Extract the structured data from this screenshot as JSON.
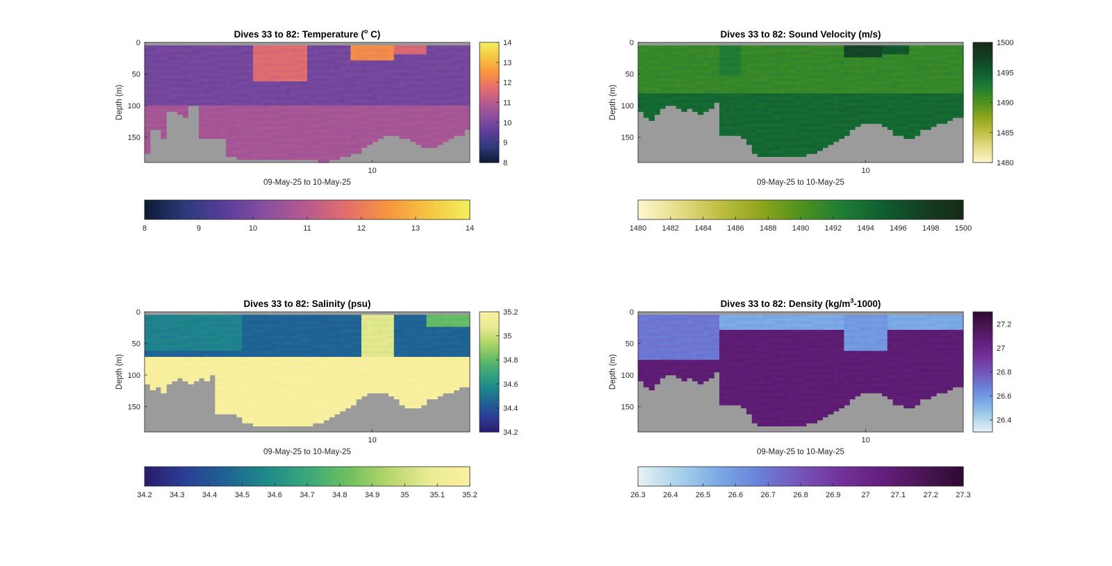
{
  "chart_data": [
    {
      "type": "heatmap",
      "title_main": "Dives 33 to 82: Temperature (",
      "title_sup": "o",
      "title_tail": " C)",
      "xlabel": "09-May-25 to 10-May-25",
      "ylabel": "Depth (m)",
      "x_ticks": [
        "10"
      ],
      "y_ticks": [
        "0",
        "50",
        "100",
        "150"
      ],
      "y_range": [
        0,
        190
      ],
      "colorbar_range": [
        8,
        14
      ],
      "colorbar_ticks": [
        "8",
        "9",
        "10",
        "11",
        "12",
        "13",
        "14"
      ],
      "horizontal_colorbar_ticks": [
        "8",
        "9",
        "10",
        "11",
        "12",
        "13",
        "14"
      ],
      "colormap": [
        "#0d1a33",
        "#2c3a7a",
        "#5b3d9a",
        "#8a4f9f",
        "#b85a8e",
        "#e56f6a",
        "#f6963f",
        "#f5c542",
        "#f2f060"
      ],
      "bottom_depth": [
        175,
        140,
        140,
        150,
        110,
        110,
        115,
        120,
        100,
        100,
        150,
        150,
        150,
        150,
        150,
        180,
        180,
        185,
        185,
        185,
        185,
        185,
        185,
        185,
        185,
        185,
        185,
        185,
        185,
        185,
        185,
        185,
        190,
        190,
        185,
        185,
        180,
        180,
        175,
        175,
        165,
        160,
        155,
        150,
        148,
        145,
        145,
        150,
        150,
        155,
        160,
        165,
        168,
        165,
        160,
        155,
        150,
        148,
        145,
        140
      ],
      "base_value": 10.7,
      "mixed_value": 9.9,
      "mixed_depth": 100,
      "warm_patches": [
        {
          "from": 20,
          "to": 30,
          "value": 11.6,
          "depth": 60
        },
        {
          "from": 38,
          "to": 46,
          "value": 12.3,
          "depth": 30
        },
        {
          "from": 46,
          "to": 52,
          "value": 11.5,
          "depth": 18
        }
      ]
    },
    {
      "type": "heatmap",
      "title_main": "Dives 33 to 82: Sound Velocity (m/s)",
      "title_sup": "",
      "title_tail": "",
      "xlabel": "09-May-25 to 10-May-25",
      "ylabel": "Depth (m)",
      "x_ticks": [
        "10"
      ],
      "y_ticks": [
        "0",
        "50",
        "100",
        "150"
      ],
      "y_range": [
        0,
        190
      ],
      "colorbar_range": [
        1480,
        1500
      ],
      "colorbar_ticks": [
        "1480",
        "1485",
        "1490",
        "1495",
        "1500"
      ],
      "horizontal_colorbar_ticks": [
        "1480",
        "1482",
        "1484",
        "1486",
        "1488",
        "1490",
        "1492",
        "1494",
        "1496",
        "1498",
        "1500"
      ],
      "colormap": [
        "#fdf6cf",
        "#e7dc87",
        "#bfbf43",
        "#8fa61c",
        "#4f921e",
        "#1f7d34",
        "#0f5e30",
        "#143f24",
        "#182a19"
      ],
      "bottom_depth": [
        110,
        120,
        125,
        112,
        105,
        100,
        100,
        105,
        110,
        105,
        110,
        115,
        110,
        105,
        95,
        145,
        145,
        145,
        145,
        150,
        160,
        175,
        180,
        180,
        180,
        180,
        180,
        180,
        180,
        180,
        180,
        175,
        175,
        170,
        165,
        160,
        155,
        150,
        145,
        140,
        135,
        130,
        128,
        128,
        130,
        135,
        140,
        145,
        148,
        150,
        150,
        145,
        140,
        138,
        135,
        130,
        128,
        125,
        120,
        118
      ],
      "base_value": 1494.2,
      "mixed_value": 1491.3,
      "mixed_depth": 80,
      "warm_patches": [
        {
          "from": 15,
          "to": 19,
          "value": 1492.6,
          "depth": 50
        },
        {
          "from": 38,
          "to": 45,
          "value": 1497.0,
          "depth": 25
        },
        {
          "from": 45,
          "to": 50,
          "value": 1495.5,
          "depth": 20
        }
      ]
    },
    {
      "type": "heatmap",
      "title_main": "Dives 33 to 82: Salinity (psu)",
      "title_sup": "",
      "title_tail": "",
      "xlabel": "09-May-25 to 10-May-25",
      "ylabel": "Depth (m)",
      "x_ticks": [
        "10"
      ],
      "y_ticks": [
        "0",
        "50",
        "100",
        "150"
      ],
      "y_range": [
        0,
        190
      ],
      "colorbar_range": [
        34.2,
        35.2
      ],
      "colorbar_ticks": [
        "34.2",
        "34.4",
        "34.6",
        "34.8",
        "35",
        "35.2"
      ],
      "horizontal_colorbar_ticks": [
        "34.2",
        "34.3",
        "34.4",
        "34.5",
        "34.6",
        "34.7",
        "34.8",
        "34.9",
        "35",
        "35.1",
        "35.2"
      ],
      "colormap": [
        "#2a1b6e",
        "#2a3f96",
        "#1f6394",
        "#1f8a8a",
        "#3aa77a",
        "#6ec060",
        "#b5d66a",
        "#eaeb95",
        "#fbf0a0"
      ],
      "bottom_depth": [
        115,
        125,
        120,
        130,
        115,
        110,
        105,
        110,
        115,
        110,
        105,
        110,
        100,
        160,
        160,
        160,
        160,
        165,
        175,
        178,
        180,
        180,
        180,
        180,
        180,
        180,
        180,
        180,
        182,
        182,
        180,
        178,
        175,
        170,
        165,
        160,
        155,
        150,
        145,
        140,
        135,
        130,
        128,
        128,
        130,
        135,
        140,
        145,
        150,
        152,
        150,
        145,
        140,
        138,
        135,
        130,
        128,
        125,
        120,
        118
      ],
      "base_value": 35.18,
      "mixed_value": 34.45,
      "mixed_depth": 70,
      "warm_patches": [
        {
          "from": 0,
          "to": 18,
          "value": 34.55,
          "depth": 60
        },
        {
          "from": 40,
          "to": 46,
          "value": 35.05,
          "depth": 70
        },
        {
          "from": 52,
          "to": 60,
          "value": 34.8,
          "depth": 25
        }
      ]
    },
    {
      "type": "heatmap",
      "title_main": "Dives 33 to 82: Density (kg/m",
      "title_sup": "3",
      "title_tail": "-1000)",
      "xlabel": "09-May-25 to 10-May-25",
      "ylabel": "Depth (m)",
      "x_ticks": [
        "10"
      ],
      "y_ticks": [
        "0",
        "50",
        "100",
        "150"
      ],
      "y_range": [
        0,
        190
      ],
      "colorbar_range": [
        26.3,
        27.3
      ],
      "colorbar_ticks": [
        "26.4",
        "26.6",
        "26.8",
        "27",
        "27.2"
      ],
      "horizontal_colorbar_ticks": [
        "26.3",
        "26.4",
        "26.5",
        "26.6",
        "26.7",
        "26.8",
        "26.9",
        "27",
        "27.1",
        "27.2",
        "27.3"
      ],
      "colormap": [
        "#e6f2f5",
        "#a9d2ea",
        "#7aa9e6",
        "#6a7fd8",
        "#7554b8",
        "#72329a",
        "#631f7d",
        "#4a1654",
        "#2e0a33"
      ],
      "bottom_depth": [
        110,
        120,
        125,
        112,
        105,
        100,
        100,
        105,
        110,
        105,
        110,
        115,
        110,
        105,
        95,
        145,
        145,
        145,
        145,
        150,
        160,
        175,
        180,
        180,
        180,
        180,
        180,
        180,
        180,
        180,
        180,
        175,
        175,
        170,
        165,
        160,
        155,
        150,
        145,
        140,
        135,
        130,
        128,
        128,
        130,
        135,
        140,
        145,
        148,
        150,
        150,
        145,
        140,
        138,
        135,
        130,
        128,
        125,
        120,
        118
      ],
      "base_value": 27.08,
      "mixed_value": 26.55,
      "mixed_depth": 30,
      "warm_patches": [
        {
          "from": 0,
          "to": 15,
          "value": 26.7,
          "depth": 75
        },
        {
          "from": 38,
          "to": 46,
          "value": 26.6,
          "depth": 60
        }
      ]
    }
  ]
}
